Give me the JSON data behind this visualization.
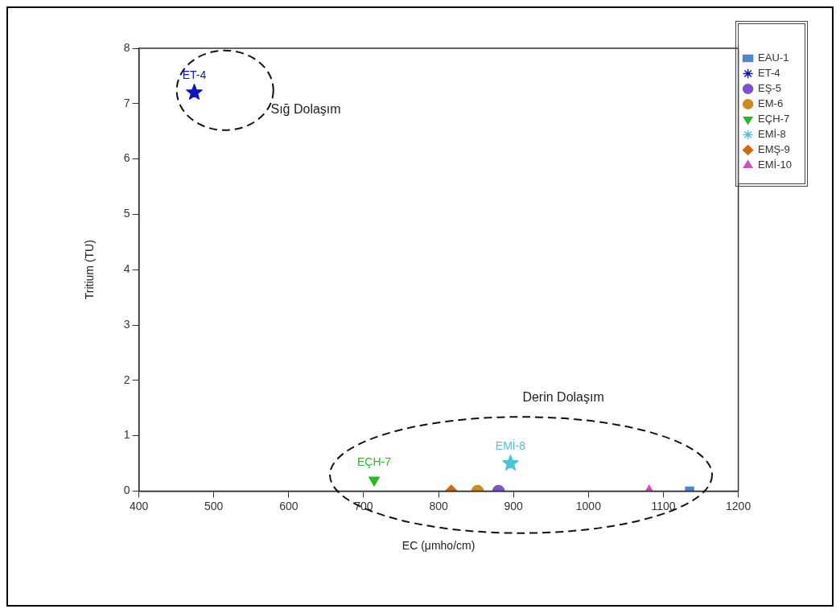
{
  "chart_data": {
    "type": "scatter",
    "xlabel": "EC (μmho/cm)",
    "ylabel": "Tritium (TU)",
    "xlim": [
      400,
      1200
    ],
    "xticks": [
      400,
      500,
      600,
      700,
      800,
      900,
      1000,
      1100,
      1200
    ],
    "ylim": [
      0,
      8
    ],
    "yticks": [
      0,
      1,
      2,
      3,
      4,
      5,
      6,
      7,
      8
    ],
    "grid": false,
    "legend": "right",
    "series": [
      {
        "name": "EAU-1",
        "color": "#4f86d0",
        "marker": "square",
        "x": [
          1135
        ],
        "values": [
          0
        ]
      },
      {
        "name": "ET-4",
        "color": "#1010c0",
        "marker": "star",
        "x": [
          474
        ],
        "values": [
          7.2
        ]
      },
      {
        "name": "EŞ-5",
        "color": "#7a52d0",
        "marker": "circle",
        "x": [
          880
        ],
        "values": [
          0
        ]
      },
      {
        "name": "EM-6",
        "color": "#d08a20",
        "marker": "circle",
        "x": [
          852
        ],
        "values": [
          0
        ]
      },
      {
        "name": "EÇH-7",
        "color": "#28b828",
        "marker": "triangle-down",
        "x": [
          714
        ],
        "values": [
          0.2
        ]
      },
      {
        "name": "EMİ-8",
        "color": "#4cc4d4",
        "marker": "star",
        "x": [
          896
        ],
        "values": [
          0.5
        ]
      },
      {
        "name": "EMŞ-9",
        "color": "#d06a10",
        "marker": "diamond",
        "x": [
          817
        ],
        "values": [
          0
        ]
      },
      {
        "name": "EMİ-10",
        "color": "#d050c0",
        "marker": "triangle",
        "x": [
          1081
        ],
        "values": [
          0
        ]
      }
    ],
    "annotations": [
      {
        "text": "ET-4",
        "x": 474,
        "y": 7.2
      },
      {
        "text": "EÇH-7",
        "x": 714,
        "y": 0.2
      },
      {
        "text": "EMİ-8",
        "x": 896,
        "y": 0.5
      },
      "Sığ Dolaşım",
      "Derin Dolaşım"
    ]
  }
}
